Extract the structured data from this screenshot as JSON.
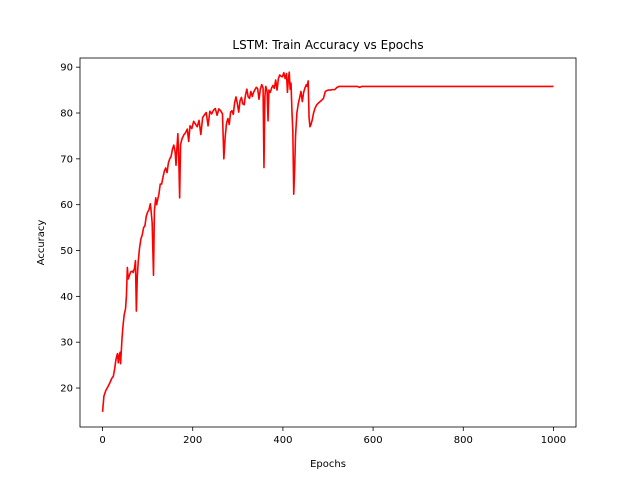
{
  "chart_data": {
    "type": "line",
    "title": "LSTM: Train Accuracy vs Epochs",
    "xlabel": "Epochs",
    "ylabel": "Accuracy",
    "xlim": [
      -50,
      1050
    ],
    "ylim": [
      11.5,
      92
    ],
    "xticks": [
      0,
      200,
      400,
      600,
      800,
      1000
    ],
    "yticks": [
      20,
      30,
      40,
      50,
      60,
      70,
      80,
      90
    ],
    "grid": false,
    "series": [
      {
        "color": "#ff0000",
        "points": [
          [
            0,
            14.8
          ],
          [
            3,
            18.2
          ],
          [
            7,
            19.4
          ],
          [
            12,
            20.3
          ],
          [
            16,
            21.1
          ],
          [
            20,
            22.0
          ],
          [
            24,
            22.6
          ],
          [
            27,
            24.3
          ],
          [
            30,
            26.4
          ],
          [
            33,
            27.5
          ],
          [
            35,
            25.5
          ],
          [
            37,
            27.2
          ],
          [
            39,
            27.8
          ],
          [
            40,
            25.3
          ],
          [
            43,
            30.5
          ],
          [
            45,
            33.2
          ],
          [
            48,
            36.0
          ],
          [
            51,
            37.3
          ],
          [
            53,
            40.2
          ],
          [
            55,
            46.3
          ],
          [
            57,
            43.8
          ],
          [
            60,
            44.7
          ],
          [
            63,
            45.4
          ],
          [
            66,
            45.5
          ],
          [
            68,
            45.2
          ],
          [
            71,
            46.2
          ],
          [
            73,
            47.8
          ],
          [
            75,
            36.8
          ],
          [
            77,
            44.2
          ],
          [
            79,
            47.4
          ],
          [
            82,
            50.5
          ],
          [
            85,
            52.5
          ],
          [
            88,
            53.4
          ],
          [
            91,
            55.0
          ],
          [
            94,
            55.4
          ],
          [
            97,
            57.5
          ],
          [
            100,
            58.4
          ],
          [
            103,
            58.9
          ],
          [
            106,
            60.2
          ],
          [
            108,
            58.3
          ],
          [
            110,
            56.1
          ],
          [
            113,
            44.6
          ],
          [
            115,
            58.7
          ],
          [
            118,
            61.5
          ],
          [
            120,
            60.0
          ],
          [
            122,
            61.0
          ],
          [
            125,
            62.3
          ],
          [
            128,
            64.5
          ],
          [
            131,
            64.5
          ],
          [
            134,
            66.0
          ],
          [
            137,
            67.3
          ],
          [
            140,
            68.0
          ],
          [
            143,
            67.0
          ],
          [
            146,
            69.1
          ],
          [
            149,
            70.0
          ],
          [
            152,
            70.5
          ],
          [
            155,
            72.1
          ],
          [
            158,
            73.0
          ],
          [
            161,
            71.5
          ],
          [
            163,
            68.6
          ],
          [
            165,
            72.5
          ],
          [
            167,
            75.5
          ],
          [
            169,
            70.4
          ],
          [
            171,
            61.5
          ],
          [
            173,
            73.1
          ],
          [
            176,
            74.3
          ],
          [
            180,
            75.2
          ],
          [
            184,
            75.7
          ],
          [
            188,
            76.5
          ],
          [
            191,
            73.8
          ],
          [
            194,
            77.2
          ],
          [
            198,
            76.6
          ],
          [
            202,
            78.2
          ],
          [
            206,
            77.6
          ],
          [
            210,
            77.0
          ],
          [
            214,
            78.4
          ],
          [
            218,
            75.3
          ],
          [
            222,
            79.0
          ],
          [
            226,
            79.6
          ],
          [
            230,
            80.1
          ],
          [
            234,
            77.2
          ],
          [
            238,
            80.4
          ],
          [
            242,
            79.8
          ],
          [
            246,
            80.6
          ],
          [
            250,
            81.0
          ],
          [
            254,
            79.5
          ],
          [
            258,
            80.9
          ],
          [
            262,
            80.5
          ],
          [
            266,
            79.8
          ],
          [
            269,
            70.0
          ],
          [
            272,
            74.8
          ],
          [
            275,
            77.8
          ],
          [
            278,
            78.8
          ],
          [
            281,
            77.5
          ],
          [
            284,
            80.2
          ],
          [
            287,
            80.5
          ],
          [
            290,
            79.7
          ],
          [
            293,
            82.3
          ],
          [
            296,
            83.5
          ],
          [
            299,
            82.0
          ],
          [
            302,
            80.2
          ],
          [
            305,
            82.7
          ],
          [
            308,
            83.4
          ],
          [
            311,
            82.0
          ],
          [
            314,
            81.8
          ],
          [
            317,
            83.9
          ],
          [
            320,
            85.2
          ],
          [
            323,
            83.5
          ],
          [
            326,
            83.2
          ],
          [
            329,
            84.7
          ],
          [
            332,
            83.6
          ],
          [
            335,
            84.5
          ],
          [
            338,
            85.1
          ],
          [
            341,
            85.6
          ],
          [
            344,
            85.3
          ],
          [
            347,
            83.0
          ],
          [
            350,
            85.2
          ],
          [
            353,
            86.2
          ],
          [
            356,
            85.5
          ],
          [
            358,
            68.1
          ],
          [
            360,
            83.5
          ],
          [
            362,
            85.8
          ],
          [
            365,
            84.7
          ],
          [
            367,
            78.3
          ],
          [
            369,
            85.0
          ],
          [
            372,
            84.5
          ],
          [
            375,
            85.5
          ],
          [
            378,
            86.0
          ],
          [
            381,
            85.4
          ],
          [
            384,
            87.2
          ],
          [
            387,
            85.0
          ],
          [
            390,
            87.5
          ],
          [
            393,
            88.3
          ],
          [
            396,
            88.0
          ],
          [
            399,
            87.9
          ],
          [
            402,
            88.8
          ],
          [
            405,
            87.5
          ],
          [
            408,
            88.6
          ],
          [
            410,
            84.5
          ],
          [
            412,
            87.2
          ],
          [
            414,
            88.9
          ],
          [
            416,
            85.2
          ],
          [
            418,
            86.5
          ],
          [
            420,
            80.5
          ],
          [
            422,
            76.0
          ],
          [
            424,
            62.3
          ],
          [
            426,
            67.5
          ],
          [
            428,
            75.0
          ],
          [
            431,
            80.0
          ],
          [
            434,
            82.0
          ],
          [
            437,
            83.3
          ],
          [
            440,
            84.7
          ],
          [
            443,
            82.5
          ],
          [
            446,
            84.5
          ],
          [
            449,
            85.5
          ],
          [
            452,
            86.2
          ],
          [
            454,
            85.8
          ],
          [
            456,
            87.0
          ],
          [
            458,
            79.0
          ],
          [
            460,
            77.0
          ],
          [
            462,
            77.4
          ],
          [
            465,
            78.5
          ],
          [
            468,
            80.0
          ],
          [
            471,
            81.0
          ],
          [
            475,
            81.8
          ],
          [
            480,
            82.3
          ],
          [
            485,
            82.7
          ],
          [
            490,
            83.2
          ],
          [
            494,
            84.7
          ],
          [
            500,
            85.0
          ],
          [
            505,
            85.0
          ],
          [
            510,
            85.1
          ],
          [
            515,
            85.1
          ],
          [
            520,
            85.6
          ],
          [
            525,
            85.8
          ],
          [
            535,
            85.8
          ],
          [
            545,
            85.8
          ],
          [
            555,
            85.8
          ],
          [
            565,
            85.8
          ],
          [
            570,
            85.6
          ],
          [
            575,
            85.8
          ],
          [
            600,
            85.8
          ],
          [
            650,
            85.8
          ],
          [
            700,
            85.8
          ],
          [
            750,
            85.8
          ],
          [
            800,
            85.8
          ],
          [
            850,
            85.8
          ],
          [
            900,
            85.8
          ],
          [
            950,
            85.8
          ],
          [
            1000,
            85.8
          ]
        ]
      }
    ]
  }
}
